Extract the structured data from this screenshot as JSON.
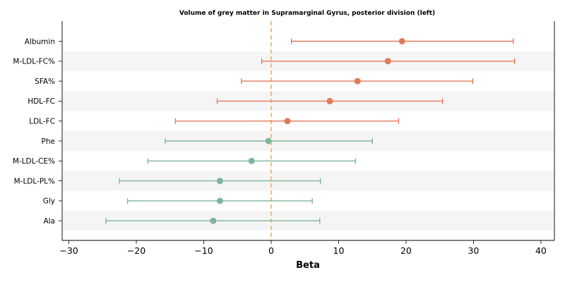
{
  "chart_data": {
    "type": "forest",
    "title": "Volume of grey matter in Supramarginal Gyrus, posterior division (left)",
    "xlabel": "Beta",
    "xlim": [
      -31,
      42
    ],
    "xticks": [
      -30,
      -20,
      -10,
      0,
      10,
      20,
      30,
      40
    ],
    "xtick_labels": [
      "−30",
      "−20",
      "−10",
      "0",
      "10",
      "20",
      "30",
      "40"
    ],
    "reference_line": 0,
    "colors": {
      "positive": "#e07b5a",
      "negative": "#7fb59c",
      "reference": "#f2c27f",
      "band": "#f5f5f5"
    },
    "rows": [
      {
        "label": "Albumin",
        "beta": 19.4,
        "lo": 3.0,
        "hi": 35.9
      },
      {
        "label": "M-LDL-FC%",
        "beta": 17.3,
        "lo": -1.4,
        "hi": 36.1
      },
      {
        "label": "SFA%",
        "beta": 12.8,
        "lo": -4.4,
        "hi": 29.9
      },
      {
        "label": "HDL-FC",
        "beta": 8.7,
        "lo": -8.0,
        "hi": 25.4
      },
      {
        "label": "LDL-FC",
        "beta": 2.4,
        "lo": -14.2,
        "hi": 18.9
      },
      {
        "label": "Phe",
        "beta": -0.4,
        "lo": -15.7,
        "hi": 15.0
      },
      {
        "label": "M-LDL-CE%",
        "beta": -2.9,
        "lo": -18.3,
        "hi": 12.5
      },
      {
        "label": "M-LDL-PL%",
        "beta": -7.6,
        "lo": -22.5,
        "hi": 7.3
      },
      {
        "label": "Gly",
        "beta": -7.6,
        "lo": -21.3,
        "hi": 6.1
      },
      {
        "label": "Ala",
        "beta": -8.6,
        "lo": -24.5,
        "hi": 7.2
      }
    ]
  }
}
